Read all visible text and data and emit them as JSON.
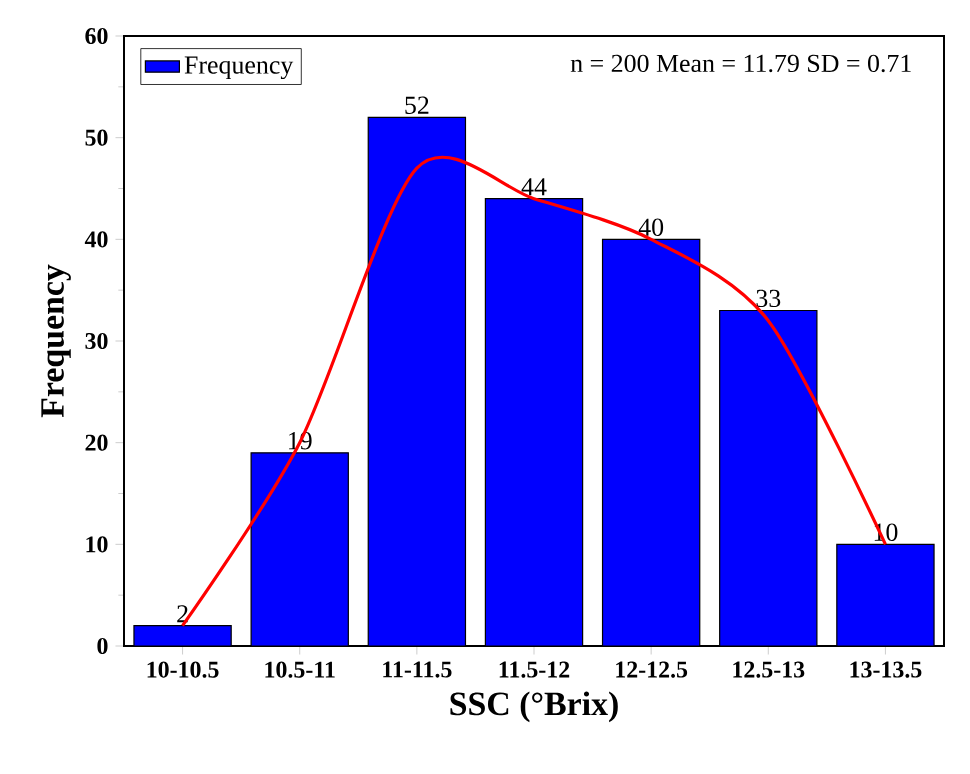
{
  "chart_data": {
    "type": "bar",
    "xlabel": "SSC (°Brix)",
    "ylabel": "Frequency",
    "categories": [
      "10-10.5",
      "10.5-11",
      "11-11.5",
      "11.5-12",
      "12-12.5",
      "12.5-13",
      "13-13.5"
    ],
    "series": [
      {
        "name": "Frequency",
        "color": "#0000ff",
        "values": [
          2,
          19,
          52,
          44,
          40,
          33,
          10
        ],
        "value_labels": [
          "2",
          "19",
          "52",
          "44",
          "40",
          "33",
          "10"
        ]
      },
      {
        "type": "line",
        "color": "#ff0000",
        "values": [
          2,
          20,
          47,
          44,
          40,
          32,
          10
        ]
      }
    ],
    "ylim": [
      0,
      60
    ],
    "yticks": [
      0,
      10,
      20,
      30,
      40,
      50,
      60
    ],
    "legend": "top left",
    "marker": "none",
    "line_style": "solid",
    "annotations": [
      "n = 200  Mean = 11.79  SD = 0.71"
    ]
  }
}
